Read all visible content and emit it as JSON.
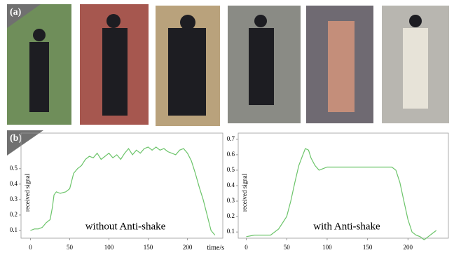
{
  "panel_labels": [
    "(a)",
    "(b)"
  ],
  "chart_data": [
    {
      "type": "line",
      "y_label": "received signal",
      "x_label": "time/s",
      "annotation": "without  Anti-shake",
      "xlim": [
        -12,
        245
      ],
      "ylim": [
        0.05,
        0.73
      ],
      "xticks": [
        0,
        50,
        100,
        150,
        200
      ],
      "yticks": [
        0.1,
        0.2,
        0.3,
        0.4,
        0.5
      ],
      "series": [
        {
          "color": "#6cc46a",
          "x": [
            0,
            5,
            10,
            15,
            20,
            25,
            28,
            30,
            33,
            38,
            45,
            50,
            55,
            60,
            65,
            70,
            75,
            80,
            85,
            90,
            95,
            100,
            105,
            110,
            115,
            120,
            125,
            130,
            135,
            140,
            145,
            150,
            155,
            160,
            165,
            170,
            175,
            180,
            185,
            190,
            195,
            200,
            205,
            210,
            215,
            220,
            225,
            230,
            235
          ],
          "values": [
            0.1,
            0.11,
            0.11,
            0.12,
            0.15,
            0.17,
            0.25,
            0.33,
            0.35,
            0.34,
            0.35,
            0.37,
            0.47,
            0.5,
            0.52,
            0.56,
            0.58,
            0.57,
            0.6,
            0.56,
            0.58,
            0.6,
            0.57,
            0.59,
            0.56,
            0.6,
            0.63,
            0.59,
            0.62,
            0.6,
            0.63,
            0.64,
            0.62,
            0.64,
            0.62,
            0.63,
            0.61,
            0.6,
            0.59,
            0.62,
            0.63,
            0.6,
            0.55,
            0.47,
            0.38,
            0.3,
            0.2,
            0.1,
            0.07
          ]
        }
      ]
    },
    {
      "type": "line",
      "y_label": "received signal",
      "annotation": "with Anti-shake",
      "xlim": [
        -10,
        250
      ],
      "ylim": [
        0.06,
        0.74
      ],
      "xticks": [
        0,
        50,
        100,
        150,
        200
      ],
      "yticks": [
        0.1,
        0.2,
        0.3,
        0.4,
        0.5,
        0.6,
        0.7
      ],
      "series": [
        {
          "color": "#6cc46a",
          "x": [
            0,
            10,
            20,
            30,
            40,
            50,
            55,
            60,
            65,
            70,
            73,
            77,
            80,
            85,
            90,
            95,
            100,
            120,
            140,
            160,
            180,
            185,
            190,
            195,
            200,
            205,
            210,
            215,
            220,
            225,
            230,
            235
          ],
          "values": [
            0.07,
            0.08,
            0.08,
            0.08,
            0.12,
            0.2,
            0.3,
            0.42,
            0.53,
            0.6,
            0.64,
            0.63,
            0.58,
            0.53,
            0.5,
            0.51,
            0.52,
            0.52,
            0.52,
            0.52,
            0.52,
            0.5,
            0.42,
            0.3,
            0.18,
            0.1,
            0.08,
            0.07,
            0.05,
            0.07,
            0.09,
            0.11
          ]
        }
      ]
    }
  ]
}
